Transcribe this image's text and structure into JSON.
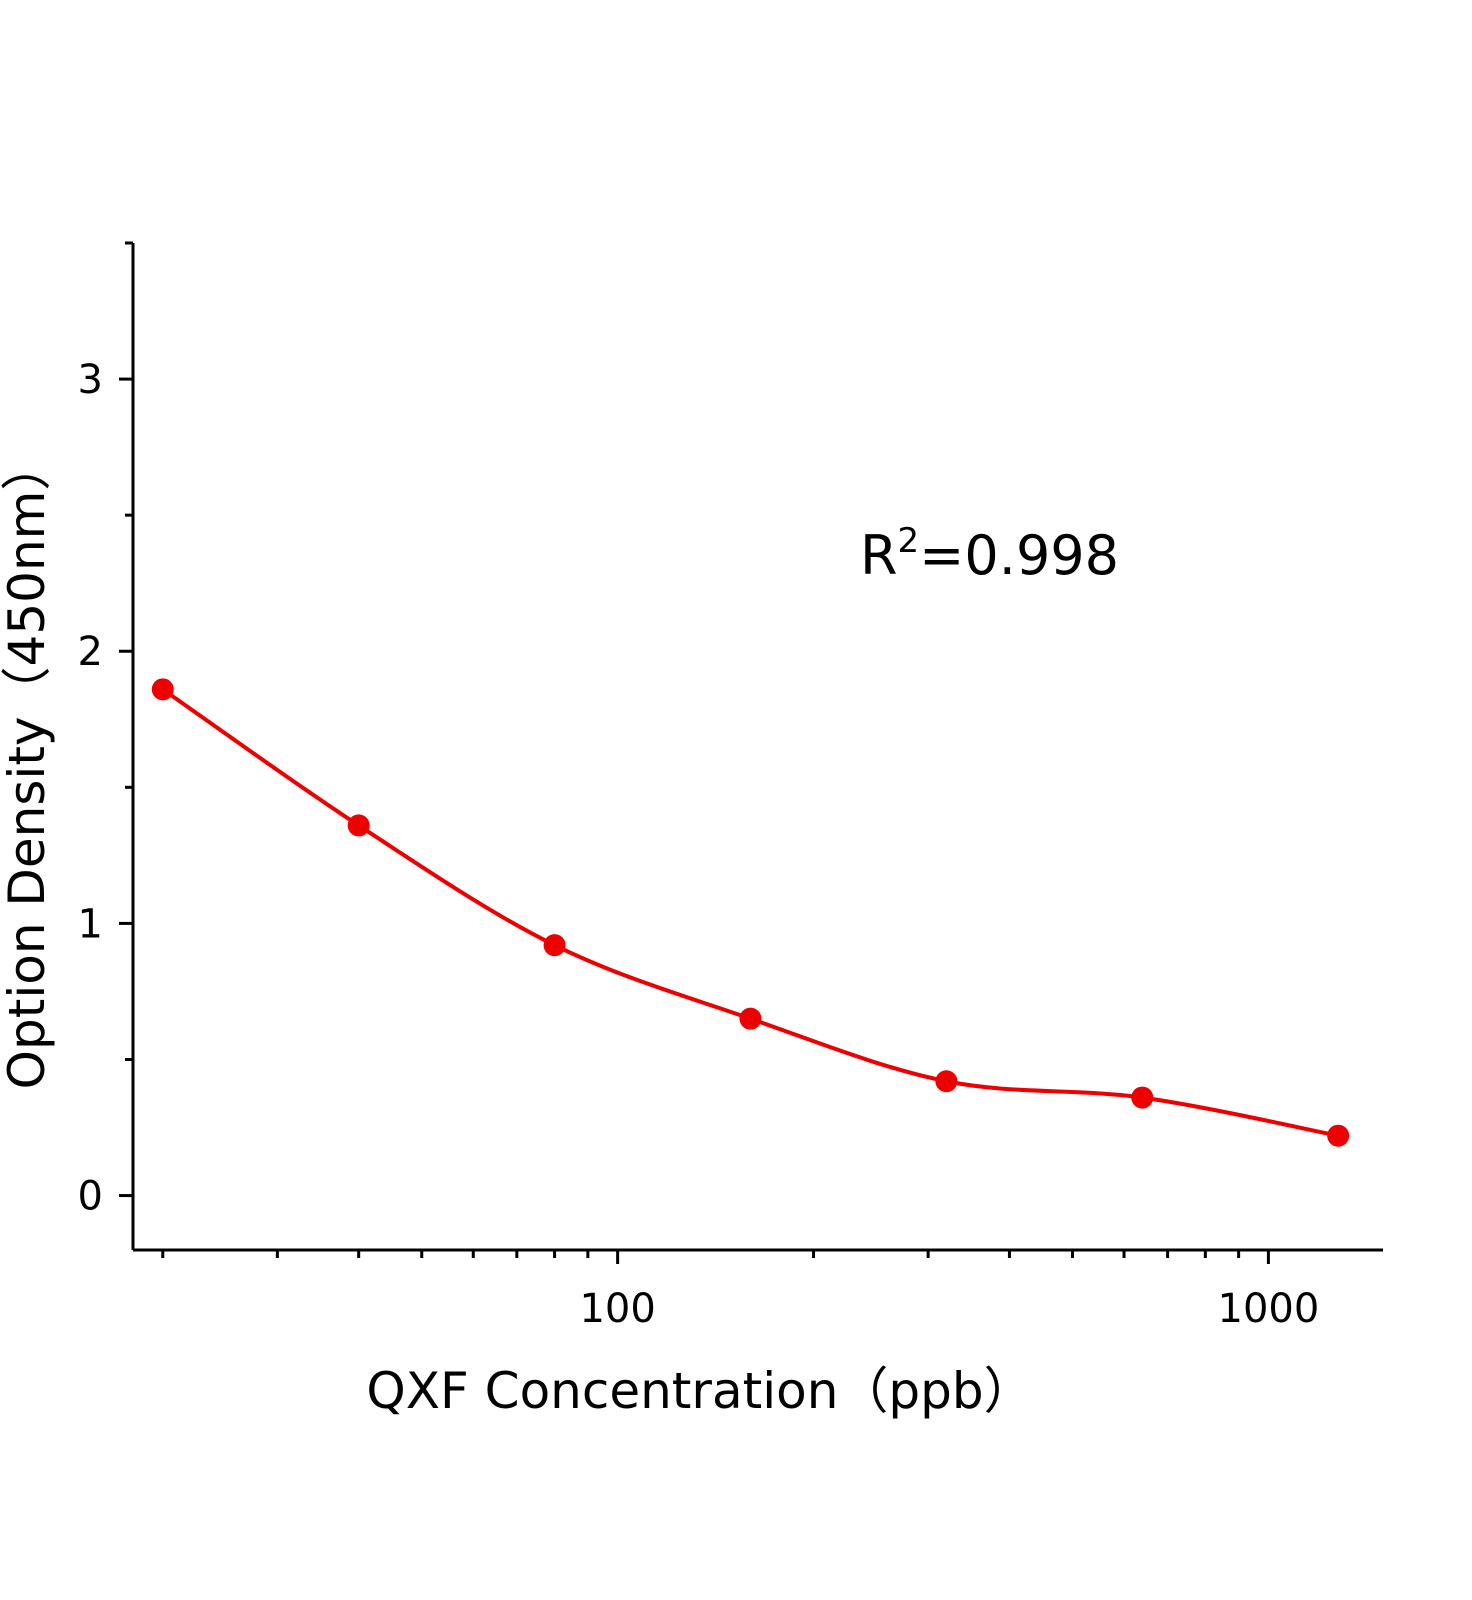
{
  "chart_data": {
    "type": "scatter",
    "xlabel": "QXF Concentration（ppb）",
    "ylabel": "Option Density（450nm）",
    "x_scale": "log",
    "xlim": [
      18,
      1500
    ],
    "ylim": [
      -0.2,
      3.5
    ],
    "x_ticks": [
      100,
      1000
    ],
    "x_tick_labels": [
      "100",
      "1000"
    ],
    "x_minor_ticks": [
      20,
      30,
      40,
      50,
      60,
      70,
      80,
      90,
      200,
      300,
      400,
      500,
      600,
      700,
      800,
      900
    ],
    "y_ticks": [
      0,
      1,
      2,
      3
    ],
    "y_tick_labels": [
      "0",
      "1",
      "2",
      "3"
    ],
    "y_minor_ticks": [
      0.5,
      1.5,
      2.5,
      3.5
    ],
    "grid": false,
    "series": [
      {
        "x": [
          20,
          40,
          80,
          160,
          320,
          640,
          1280
        ],
        "y": [
          1.86,
          1.36,
          0.92,
          0.65,
          0.42,
          0.36,
          0.22
        ],
        "color": "#ee0000",
        "marker": "circle",
        "fit_line": true
      }
    ],
    "annotation": {
      "base": "R",
      "sup": "2",
      "rest": "=0.998"
    }
  }
}
